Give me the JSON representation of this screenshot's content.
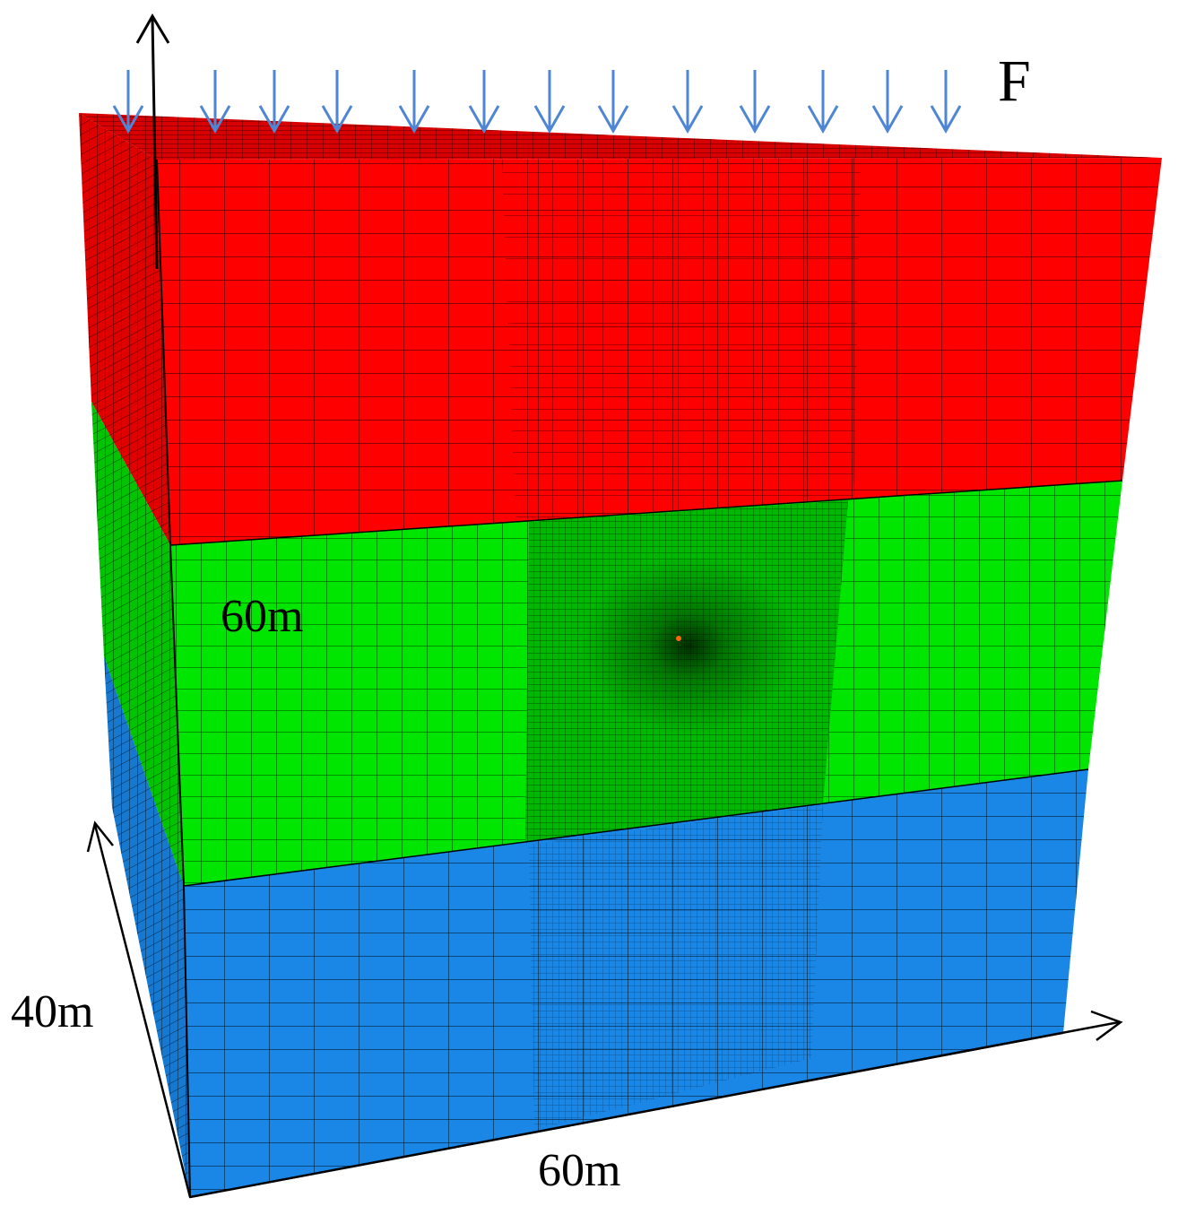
{
  "labels": {
    "force": "F",
    "height": "60m",
    "depth": "40m",
    "width": "60m"
  },
  "colors": {
    "top_layer": "#ff0000",
    "middle_layer": "#00e600",
    "bottom_layer": "#1a86e6",
    "load_arrow": "#4f86d4",
    "mesh_line": "#000000"
  },
  "load_arrow_count": 13,
  "layers": [
    "top",
    "middle",
    "bottom"
  ]
}
